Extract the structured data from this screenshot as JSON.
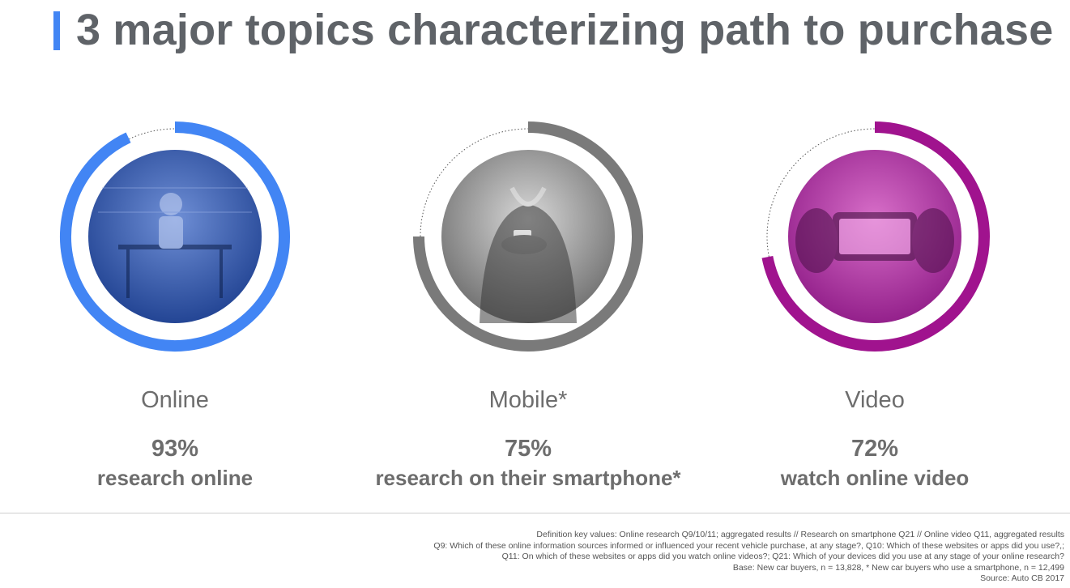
{
  "header": {
    "title": "3 major topics characterizing path to purchase",
    "accent_color": "#4285f4"
  },
  "chart_data": [
    {
      "type": "donut",
      "topic": "Online",
      "value": 93,
      "value_label": "93%",
      "description": "research online",
      "color": "#4285f4",
      "photo_icon": "cafe-photo-icon",
      "photo_tint": "#1d3f8f"
    },
    {
      "type": "donut",
      "topic": "Mobile*",
      "value": 75,
      "value_label": "75%",
      "description": "research on their smartphone*",
      "color": "#7a7a7a",
      "photo_icon": "person-with-smartphone-photo-icon",
      "photo_tint": "#6a6a6a"
    },
    {
      "type": "donut",
      "topic": "Video",
      "value": 72,
      "value_label": "72%",
      "description": "watch online video",
      "color": "#a0138e",
      "photo_icon": "hands-recording-video-photo-icon",
      "photo_tint": "#8e1a86"
    }
  ],
  "footnotes": [
    "Definition key values: Online research Q9/10/11; aggregated results // Research on smartphone Q21 // Online video Q11, aggregated results",
    "Q9: Which of these online information sources informed or influenced your recent vehicle purchase, at any stage?, Q10: Which of these websites or apps did you use?,;",
    "Q11: On which of these  websites or apps did you watch online videos?; Q21: Which of your devices did you use at any stage of your online research?",
    "Base: New car buyers, n = 13,828, * New car buyers who use a smartphone, n = 12,499",
    "Source: Auto CB 2017"
  ]
}
